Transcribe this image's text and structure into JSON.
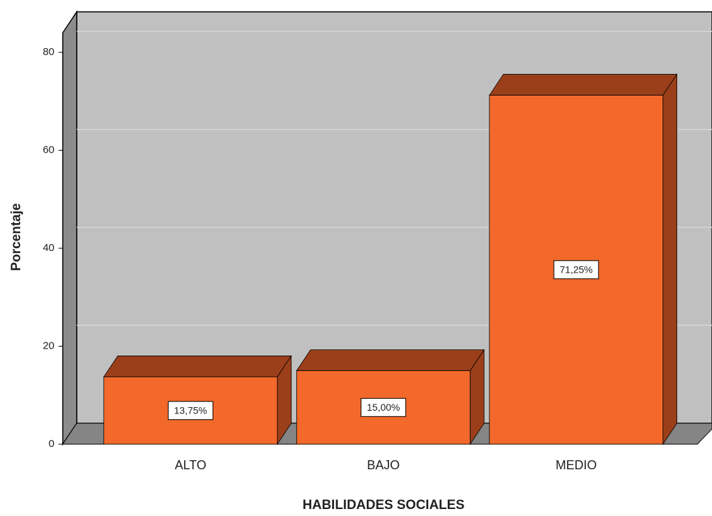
{
  "chart_data": {
    "type": "bar3d",
    "xlabel": "HABILIDADES SOCIALES",
    "ylabel": "Porcentaje",
    "categories": [
      "ALTO",
      "BAJO",
      "MEDIO"
    ],
    "values": [
      13.75,
      15.0,
      71.25
    ],
    "value_labels": [
      "13,75%",
      "15,00%",
      "71,25%"
    ],
    "color": "#f2692b",
    "ylim": [
      0,
      84
    ],
    "yticks": [
      0,
      20,
      40,
      60,
      80
    ],
    "grid": true
  }
}
